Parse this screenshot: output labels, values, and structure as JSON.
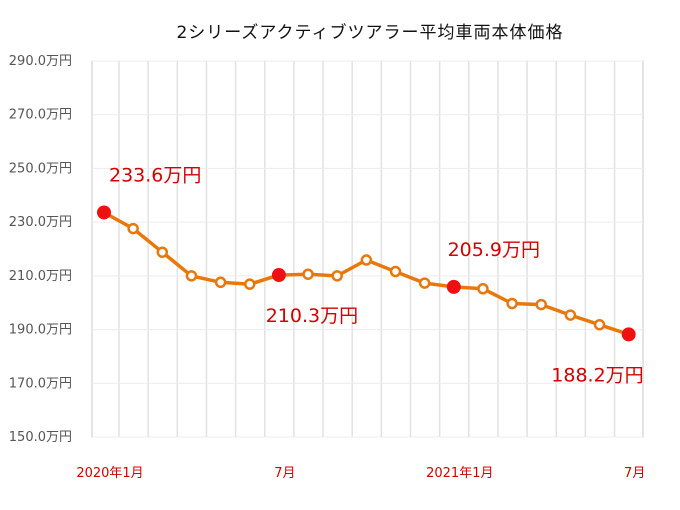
{
  "chart_data": {
    "type": "line",
    "title": "2シリーズアクティブツアラー平均車両本体価格",
    "unit": "万円",
    "ylim": [
      150,
      290
    ],
    "yticks": [
      "290.0万円",
      "270.0万円",
      "250.0万円",
      "230.0万円",
      "210.0万円",
      "190.0万円",
      "170.0万円",
      "150.0万円"
    ],
    "ytick_values": [
      290,
      270,
      250,
      230,
      210,
      190,
      170,
      150
    ],
    "x_tick_labels": [
      {
        "index": 0,
        "label": "2020年1月"
      },
      {
        "index": 6,
        "label": "7月"
      },
      {
        "index": 12,
        "label": "2021年1月"
      },
      {
        "index": 18,
        "label": "7月"
      }
    ],
    "series": [
      {
        "values": [
          233.6,
          227.6,
          218.8,
          210.0,
          207.6,
          206.9,
          210.3,
          210.6,
          210.0,
          215.9,
          211.6,
          207.3,
          205.9,
          205.2,
          199.7,
          199.3,
          195.4,
          191.8,
          188.2
        ],
        "color": "#e8780c"
      }
    ],
    "highlight_points": [
      {
        "index": 0,
        "label": "233.6万円",
        "label_pos": "above"
      },
      {
        "index": 6,
        "label": "210.3万円",
        "label_pos": "below"
      },
      {
        "index": 12,
        "label": "205.9万円",
        "label_pos": "above"
      },
      {
        "index": 18,
        "label": "188.2万円",
        "label_pos": "below"
      }
    ],
    "highlight_color": "#ee1111",
    "grid": true,
    "legend": "none"
  }
}
